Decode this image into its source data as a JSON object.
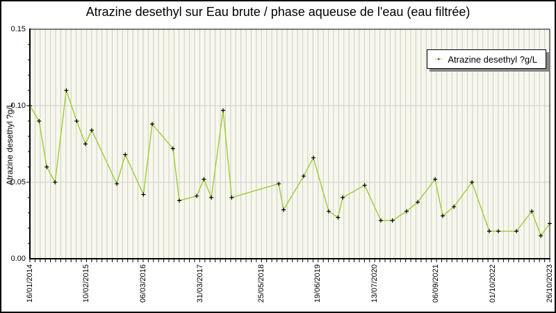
{
  "window": {
    "background": "#ffffff",
    "frame_color": "#000000"
  },
  "chart_data": {
    "type": "line",
    "title": "Atrazine desethyl sur Eau brute / phase aqueuse de l'eau (eau filtrée)",
    "xlabel": "",
    "ylabel": "Atrazine desethyl ?g/L",
    "legend": {
      "label": "Atrazine desethyl ?g/L",
      "position": "top-right"
    },
    "ylim": [
      0,
      0.15
    ],
    "y_major_ticks": [
      0.0,
      0.05,
      0.1,
      0.15
    ],
    "y_tick_labels": [
      "0.00",
      "0.05",
      "0.10",
      "0.15"
    ],
    "y_minor_tick_step": 0.01,
    "x_range": [
      "16/01/2014",
      "26/10/2023"
    ],
    "x_tick_labels": [
      "16/01/2014",
      "10/02/2015",
      "06/03/2016",
      "31/03/2017",
      "25/05/2018",
      "19/06/2019",
      "13/07/2020",
      "06/09/2021",
      "01/10/2022",
      "26/10/2023"
    ],
    "grid": {
      "on": true,
      "x_minor_count": 101,
      "horizontal_at": [
        0.05,
        0.1
      ],
      "color": "#cccccc"
    },
    "plot_background": "#f7f7ec",
    "series": [
      {
        "name": "Atrazine desethyl ?g/L",
        "color": "#9acd32",
        "marker": "plus",
        "marker_color": "#000000",
        "points": [
          [
            "16/01/2014",
            0.1
          ],
          [
            "20/03/2014",
            0.09
          ],
          [
            "12/05/2014",
            0.06
          ],
          [
            "08/07/2014",
            0.05
          ],
          [
            "23/09/2014",
            0.11
          ],
          [
            "03/12/2014",
            0.09
          ],
          [
            "02/02/2015",
            0.075
          ],
          [
            "17/03/2015",
            0.084
          ],
          [
            "05/09/2015",
            0.049
          ],
          [
            "02/11/2015",
            0.068
          ],
          [
            "06/03/2016",
            0.042
          ],
          [
            "05/05/2016",
            0.088
          ],
          [
            "24/09/2016",
            0.072
          ],
          [
            "07/11/2016",
            0.038
          ],
          [
            "07/03/2017",
            0.041
          ],
          [
            "25/04/2017",
            0.052
          ],
          [
            "15/06/2017",
            0.04
          ],
          [
            "04/09/2017",
            0.097
          ],
          [
            "02/11/2017",
            0.04
          ],
          [
            "21/09/2018",
            0.049
          ],
          [
            "24/10/2018",
            0.032
          ],
          [
            "11/03/2019",
            0.054
          ],
          [
            "17/05/2019",
            0.066
          ],
          [
            "30/08/2019",
            0.031
          ],
          [
            "02/11/2019",
            0.027
          ],
          [
            "04/12/2019",
            0.04
          ],
          [
            "03/05/2020",
            0.048
          ],
          [
            "22/08/2020",
            0.025
          ],
          [
            "10/11/2020",
            0.025
          ],
          [
            "15/02/2021",
            0.031
          ],
          [
            "02/05/2021",
            0.037
          ],
          [
            "30/08/2021",
            0.052
          ],
          [
            "21/10/2021",
            0.028
          ],
          [
            "06/01/2022",
            0.034
          ],
          [
            "10/05/2022",
            0.05
          ],
          [
            "06/09/2022",
            0.018
          ],
          [
            "07/11/2022",
            0.018
          ],
          [
            "11/03/2023",
            0.018
          ],
          [
            "25/06/2023",
            0.031
          ],
          [
            "26/08/2023",
            0.015
          ],
          [
            "26/10/2023",
            0.023
          ]
        ]
      }
    ]
  }
}
